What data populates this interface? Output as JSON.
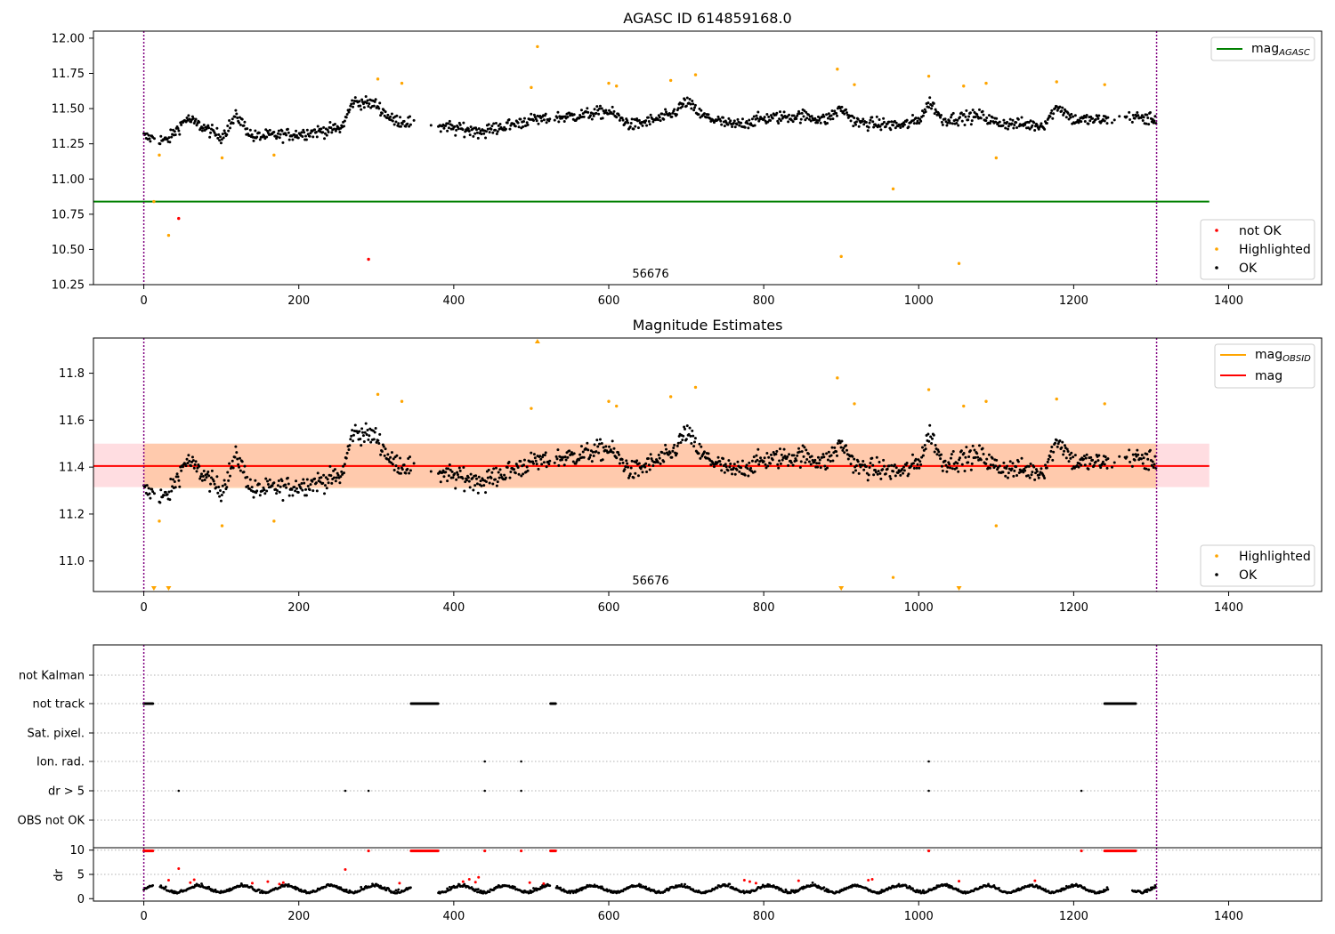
{
  "chart_data": [
    {
      "type": "scatter",
      "title": "AGASC ID 614859168.0",
      "xlim": [
        -65,
        1520
      ],
      "ylim": [
        10.25,
        12.05
      ],
      "xticks": [
        0,
        200,
        400,
        600,
        800,
        1000,
        1200,
        1400
      ],
      "yticks": [
        "10.25",
        "10.50",
        "10.75",
        "11.00",
        "11.25",
        "11.50",
        "11.75",
        "12.00"
      ],
      "annotation": "56676",
      "hlines": [
        {
          "name": "mag_AGASC",
          "y": 10.84,
          "x_range": [
            -65,
            1375
          ],
          "color": "#008000"
        }
      ],
      "vlines": [
        0,
        1307
      ],
      "legend_upper": [
        {
          "label": "mag",
          "sub": "AGASC",
          "color": "#008000"
        }
      ],
      "legend_lower": [
        {
          "label": "not OK",
          "color": "#ff0000"
        },
        {
          "label": "Highlighted",
          "color": "#ffa500"
        },
        {
          "label": "OK",
          "color": "#000000"
        }
      ],
      "outliers": [
        {
          "x": 13,
          "y": 10.84,
          "color": "#ffa500"
        },
        {
          "x": 20,
          "y": 11.17,
          "color": "#ffa500"
        },
        {
          "x": 32,
          "y": 10.6,
          "color": "#ffa500"
        },
        {
          "x": 45,
          "y": 10.72,
          "color": "#ff0000"
        },
        {
          "x": 101,
          "y": 11.15,
          "color": "#ffa500"
        },
        {
          "x": 168,
          "y": 11.17,
          "color": "#ffa500"
        },
        {
          "x": 290,
          "y": 10.43,
          "color": "#ff0000"
        },
        {
          "x": 302,
          "y": 11.71,
          "color": "#ffa500"
        },
        {
          "x": 333,
          "y": 11.68,
          "color": "#ffa500"
        },
        {
          "x": 500,
          "y": 11.65,
          "color": "#ffa500"
        },
        {
          "x": 508,
          "y": 11.94,
          "color": "#ffa500"
        },
        {
          "x": 600,
          "y": 11.68,
          "color": "#ffa500"
        },
        {
          "x": 610,
          "y": 11.66,
          "color": "#ffa500"
        },
        {
          "x": 680,
          "y": 11.7,
          "color": "#ffa500"
        },
        {
          "x": 712,
          "y": 11.74,
          "color": "#ffa500"
        },
        {
          "x": 895,
          "y": 11.78,
          "color": "#ffa500"
        },
        {
          "x": 900,
          "y": 10.45,
          "color": "#ffa500"
        },
        {
          "x": 917,
          "y": 11.67,
          "color": "#ffa500"
        },
        {
          "x": 967,
          "y": 10.93,
          "color": "#ffa500"
        },
        {
          "x": 1013,
          "y": 11.73,
          "color": "#ffa500"
        },
        {
          "x": 1052,
          "y": 10.4,
          "color": "#ffa500"
        },
        {
          "x": 1058,
          "y": 11.66,
          "color": "#ffa500"
        },
        {
          "x": 1087,
          "y": 11.68,
          "color": "#ffa500"
        },
        {
          "x": 1100,
          "y": 11.15,
          "color": "#ffa500"
        },
        {
          "x": 1178,
          "y": 11.69,
          "color": "#ffa500"
        },
        {
          "x": 1240,
          "y": 11.67,
          "color": "#ffa500"
        }
      ]
    },
    {
      "type": "scatter",
      "title": "Magnitude Estimates",
      "xlim": [
        -65,
        1520
      ],
      "ylim": [
        10.87,
        11.95
      ],
      "xticks": [
        0,
        200,
        400,
        600,
        800,
        1000,
        1200,
        1400
      ],
      "yticks": [
        "11.0",
        "11.2",
        "11.4",
        "11.6",
        "11.8"
      ],
      "annotation": "56676",
      "mag": 11.405,
      "mag_band": [
        11.315,
        11.5
      ],
      "obsid_band": [
        11.31,
        11.5
      ],
      "vlines": [
        0,
        1307
      ],
      "legend_upper": [
        {
          "label": "mag",
          "sub": "OBSID",
          "color": "#ffa500"
        },
        {
          "label": "mag",
          "sub": "",
          "color": "#ff0000"
        }
      ],
      "legend_lower": [
        {
          "label": "Highlighted",
          "color": "#ffa500"
        },
        {
          "label": "OK",
          "color": "#000000"
        }
      ],
      "offscale_markers": [
        {
          "x": 13,
          "edge": "bottom"
        },
        {
          "x": 32,
          "edge": "bottom"
        },
        {
          "x": 508,
          "edge": "top"
        },
        {
          "x": 900,
          "edge": "bottom"
        },
        {
          "x": 1052,
          "edge": "bottom"
        }
      ],
      "outliers": [
        {
          "x": 20,
          "y": 11.17,
          "color": "#ffa500"
        },
        {
          "x": 101,
          "y": 11.15,
          "color": "#ffa500"
        },
        {
          "x": 168,
          "y": 11.17,
          "color": "#ffa500"
        },
        {
          "x": 302,
          "y": 11.71,
          "color": "#ffa500"
        },
        {
          "x": 333,
          "y": 11.68,
          "color": "#ffa500"
        },
        {
          "x": 500,
          "y": 11.65,
          "color": "#ffa500"
        },
        {
          "x": 600,
          "y": 11.68,
          "color": "#ffa500"
        },
        {
          "x": 610,
          "y": 11.66,
          "color": "#ffa500"
        },
        {
          "x": 680,
          "y": 11.7,
          "color": "#ffa500"
        },
        {
          "x": 712,
          "y": 11.74,
          "color": "#ffa500"
        },
        {
          "x": 895,
          "y": 11.78,
          "color": "#ffa500"
        },
        {
          "x": 917,
          "y": 11.67,
          "color": "#ffa500"
        },
        {
          "x": 967,
          "y": 10.93,
          "color": "#ffa500"
        },
        {
          "x": 1013,
          "y": 11.73,
          "color": "#ffa500"
        },
        {
          "x": 1058,
          "y": 11.66,
          "color": "#ffa500"
        },
        {
          "x": 1087,
          "y": 11.68,
          "color": "#ffa500"
        },
        {
          "x": 1100,
          "y": 11.15,
          "color": "#ffa500"
        },
        {
          "x": 1178,
          "y": 11.69,
          "color": "#ffa500"
        },
        {
          "x": 1240,
          "y": 11.67,
          "color": "#ffa500"
        }
      ]
    },
    {
      "type": "scatter",
      "title": "",
      "xlim": [
        -65,
        1520
      ],
      "xticks": [
        0,
        200,
        400,
        600,
        800,
        1000,
        1200,
        1400
      ],
      "flag_rows": [
        "not Kalman",
        "not track",
        "Sat. pixel.",
        "Ion. rad.",
        "dr > 5",
        "OBS not OK"
      ],
      "flags": {
        "not track": [
          [
            0,
            12
          ],
          [
            345,
            380
          ],
          [
            525,
            532
          ],
          [
            1240,
            1280
          ]
        ],
        "Ion. rad.": [
          440,
          487,
          1013
        ],
        "dr > 5": [
          45,
          260,
          290,
          440,
          487,
          1013,
          1210
        ]
      },
      "dr_ylabel": "dr",
      "dr_yticks": [
        "0",
        "5",
        "10"
      ],
      "dr_ylim": [
        -0.5,
        10.5
      ],
      "dr_clipped_red": [
        [
          0,
          12
        ],
        [
          290,
          291
        ],
        [
          345,
          380
        ],
        [
          440,
          441
        ],
        [
          487,
          488
        ],
        [
          525,
          532
        ],
        [
          1013,
          1014
        ],
        [
          1210,
          1211
        ],
        [
          1240,
          1280
        ]
      ],
      "dr_spikes": [
        {
          "x": 45,
          "y": 6.2
        },
        {
          "x": 32,
          "y": 3.8
        },
        {
          "x": 60,
          "y": 3.3
        },
        {
          "x": 65,
          "y": 3.9
        },
        {
          "x": 140,
          "y": 3.2
        },
        {
          "x": 160,
          "y": 3.5
        },
        {
          "x": 175,
          "y": 3.0
        },
        {
          "x": 180,
          "y": 3.3
        },
        {
          "x": 260,
          "y": 6.0
        },
        {
          "x": 330,
          "y": 3.2
        },
        {
          "x": 412,
          "y": 3.5
        },
        {
          "x": 420,
          "y": 4.0
        },
        {
          "x": 428,
          "y": 3.4
        },
        {
          "x": 432,
          "y": 4.4
        },
        {
          "x": 498,
          "y": 3.3
        },
        {
          "x": 516,
          "y": 3.1
        },
        {
          "x": 775,
          "y": 3.8
        },
        {
          "x": 782,
          "y": 3.5
        },
        {
          "x": 790,
          "y": 3.2
        },
        {
          "x": 845,
          "y": 3.7
        },
        {
          "x": 935,
          "y": 3.8
        },
        {
          "x": 940,
          "y": 4.0
        },
        {
          "x": 1052,
          "y": 3.6
        },
        {
          "x": 1150,
          "y": 3.7
        }
      ]
    }
  ]
}
